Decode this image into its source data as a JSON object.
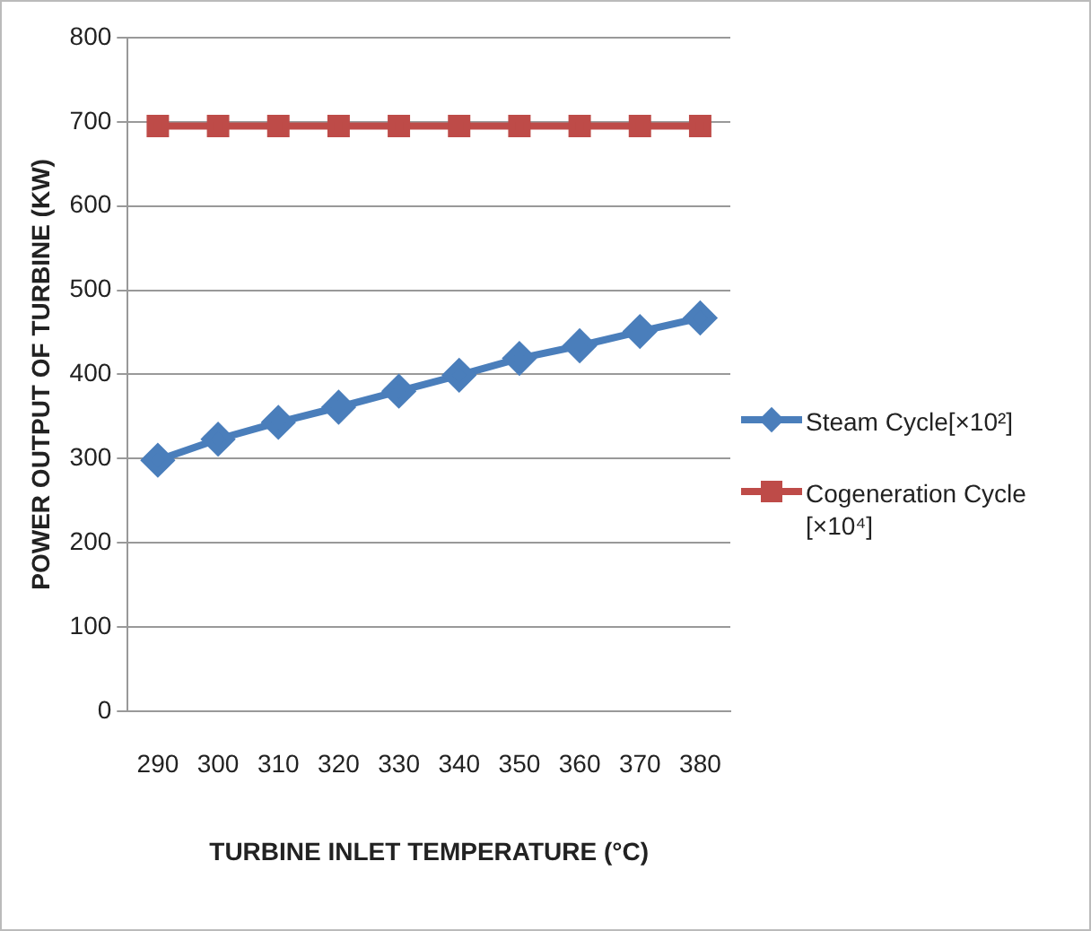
{
  "chart_data": {
    "type": "line",
    "xlabel": "TURBINE INLET TEMPERATURE (°C)",
    "ylabel": "POWER OUTPUT OF TURBINE (KW)",
    "categories": [
      "290",
      "300",
      "310",
      "320",
      "330",
      "340",
      "350",
      "360",
      "370",
      "380"
    ],
    "series": [
      {
        "name": "Steam Cycle[×10²]",
        "color": "#4a7ebb",
        "marker": "diamond",
        "values": [
          298,
          323,
          343,
          361,
          380,
          399,
          419,
          434,
          451,
          467
        ]
      },
      {
        "name": "Cogeneration Cycle [×10⁴]",
        "color": "#be4b48",
        "marker": "square",
        "values": [
          695,
          695,
          695,
          695,
          695,
          695,
          695,
          695,
          695,
          695
        ]
      }
    ],
    "ylim": [
      0,
      800
    ],
    "yticks": [
      0,
      100,
      200,
      300,
      400,
      500,
      600,
      700,
      800
    ],
    "grid": "y",
    "legend": "right",
    "line_style": "solid"
  }
}
